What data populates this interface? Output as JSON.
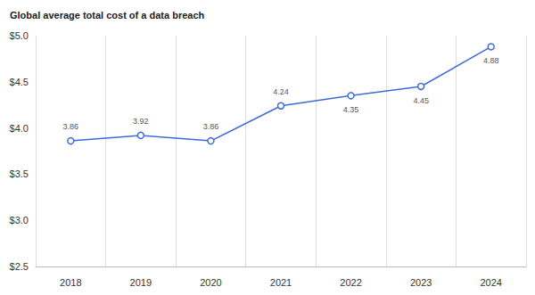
{
  "chart_data": {
    "type": "line",
    "title": "Global average total cost of a data breach",
    "categories": [
      "2018",
      "2019",
      "2020",
      "2021",
      "2022",
      "2023",
      "2024"
    ],
    "values": [
      3.86,
      3.92,
      3.86,
      4.24,
      4.35,
      4.45,
      4.88
    ],
    "color": "#3f6ad8",
    "marker": "circle",
    "ylim": [
      2.5,
      5.0
    ],
    "yticks": [
      {
        "value": 2.5,
        "label": "$2.5"
      },
      {
        "value": 3.0,
        "label": "$3.0"
      },
      {
        "value": 3.5,
        "label": "$3.5"
      },
      {
        "value": 4.0,
        "label": "$4.0"
      },
      {
        "value": 4.5,
        "label": "$4.5"
      },
      {
        "value": 5.0,
        "label": "$5.0"
      }
    ],
    "grid": true,
    "data_labels": true
  }
}
